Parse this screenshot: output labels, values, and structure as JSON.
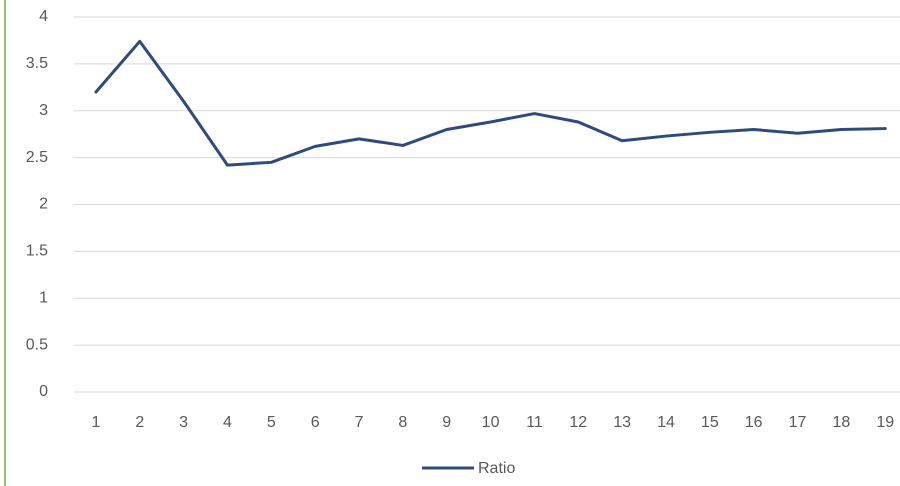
{
  "chart_data": {
    "type": "line",
    "categories": [
      1,
      2,
      3,
      4,
      5,
      6,
      7,
      8,
      9,
      10,
      11,
      12,
      13,
      14,
      15,
      16,
      17,
      18,
      19
    ],
    "series": [
      {
        "name": "Ratio",
        "color": "#2f4b7c",
        "values": [
          3.2,
          3.74,
          3.1,
          2.42,
          2.45,
          2.62,
          2.7,
          2.63,
          2.8,
          2.88,
          2.97,
          2.88,
          2.68,
          2.73,
          2.77,
          2.8,
          2.76,
          2.8,
          2.81
        ]
      }
    ],
    "ylim": [
      0,
      4
    ],
    "yticks": [
      0,
      0.5,
      1,
      1.5,
      2,
      2.5,
      3,
      3.5,
      4
    ],
    "grid": true,
    "legend": "bottom"
  }
}
